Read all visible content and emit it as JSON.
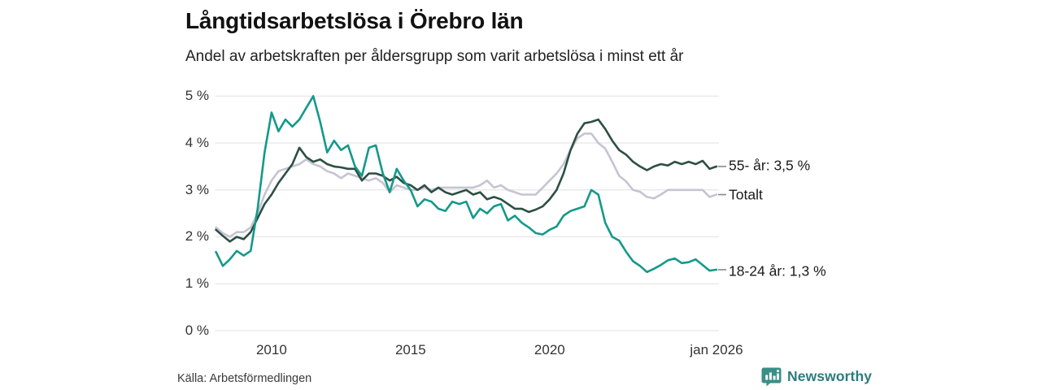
{
  "header": {
    "title": "Långtidsarbetslösa i Örebro län",
    "subtitle": "Andel av arbetskraften per åldersgrupp som varit arbetslösa i minst ett år"
  },
  "footer": {
    "source": "Källa: Arbetsförmedlingen",
    "brand": "Newsworthy"
  },
  "colors": {
    "series_older": "#2d4f43",
    "series_total": "#c6c4d2",
    "series_young": "#14998a",
    "gridline": "#e6e6ea",
    "connector": "#888888",
    "brand_teal": "#3a8f88"
  },
  "chart_data": {
    "type": "line",
    "title": "Långtidsarbetslösa i Örebro län",
    "subtitle": "Andel av arbetskraften per åldersgrupp som varit arbetslösa i minst ett år",
    "xlabel": "",
    "ylabel": "",
    "grid": "horizontal",
    "legend_position": "right-end-labels",
    "ylim": [
      0,
      5
    ],
    "xlim": [
      2008.0,
      2026.0
    ],
    "y_tick_labels": [
      "0 %",
      "1 %",
      "2 %",
      "3 %",
      "4 %",
      "5 %"
    ],
    "y_tick_values": [
      0,
      1,
      2,
      3,
      4,
      5
    ],
    "x_tick_labels": [
      "2010",
      "2015",
      "2020",
      "jan 2026"
    ],
    "x_tick_years": [
      2010,
      2015,
      2020,
      2026
    ],
    "x_start": 2008.0,
    "x_step": 0.25,
    "unit": "%",
    "series": [
      {
        "name": "Totalt",
        "end_label": "Totalt",
        "end_value": 2.9,
        "color": "#c6c4d2",
        "values": [
          2.2,
          2.08,
          2.0,
          2.1,
          2.1,
          2.2,
          2.5,
          2.9,
          3.2,
          3.4,
          3.45,
          3.5,
          3.55,
          3.65,
          3.55,
          3.5,
          3.4,
          3.35,
          3.25,
          3.35,
          3.3,
          3.25,
          3.2,
          3.25,
          3.15,
          2.95,
          3.1,
          3.05,
          3.0,
          3.0,
          3.05,
          3.0,
          3.05,
          3.05,
          3.05,
          3.05,
          3.05,
          3.05,
          3.1,
          3.2,
          3.05,
          3.1,
          3.0,
          2.95,
          2.9,
          2.9,
          2.9,
          3.05,
          3.2,
          3.35,
          3.55,
          3.85,
          4.1,
          4.2,
          4.2,
          4.0,
          3.88,
          3.6,
          3.3,
          3.18,
          3.0,
          2.96,
          2.85,
          2.82,
          2.9,
          3.0,
          3.0,
          3.0,
          3.0,
          3.0,
          3.0,
          2.85,
          2.9
        ]
      },
      {
        "name": "55- år",
        "end_label": "55- år: 3,5 %",
        "end_value": 3.5,
        "color": "#2d4f43",
        "values": [
          2.15,
          2.02,
          1.9,
          2.0,
          1.95,
          2.1,
          2.4,
          2.7,
          2.9,
          3.15,
          3.35,
          3.55,
          3.9,
          3.7,
          3.6,
          3.65,
          3.55,
          3.5,
          3.48,
          3.45,
          3.45,
          3.2,
          3.35,
          3.35,
          3.3,
          3.2,
          3.28,
          3.15,
          3.1,
          3.0,
          3.1,
          2.95,
          3.05,
          2.95,
          2.9,
          2.95,
          3.0,
          2.9,
          2.95,
          2.8,
          2.85,
          2.8,
          2.7,
          2.6,
          2.6,
          2.53,
          2.58,
          2.65,
          2.8,
          3.0,
          3.35,
          3.85,
          4.2,
          4.42,
          4.45,
          4.5,
          4.3,
          4.05,
          3.85,
          3.75,
          3.6,
          3.5,
          3.42,
          3.5,
          3.55,
          3.52,
          3.6,
          3.55,
          3.6,
          3.55,
          3.62,
          3.45,
          3.5
        ]
      },
      {
        "name": "18-24 år",
        "end_label": "18-24 år: 1,3 %",
        "end_value": 1.3,
        "color": "#14998a",
        "values": [
          1.68,
          1.38,
          1.52,
          1.7,
          1.6,
          1.7,
          2.6,
          3.8,
          4.65,
          4.25,
          4.5,
          4.35,
          4.5,
          4.75,
          5.0,
          4.45,
          3.8,
          4.05,
          3.85,
          3.95,
          3.5,
          3.3,
          3.9,
          3.95,
          3.35,
          2.95,
          3.45,
          3.2,
          3.0,
          2.65,
          2.8,
          2.75,
          2.6,
          2.55,
          2.75,
          2.7,
          2.75,
          2.4,
          2.6,
          2.5,
          2.65,
          2.7,
          2.35,
          2.45,
          2.3,
          2.2,
          2.08,
          2.05,
          2.15,
          2.22,
          2.45,
          2.55,
          2.6,
          2.65,
          3.0,
          2.9,
          2.3,
          2.0,
          1.92,
          1.68,
          1.48,
          1.38,
          1.25,
          1.32,
          1.4,
          1.5,
          1.54,
          1.44,
          1.46,
          1.52,
          1.4,
          1.28,
          1.3
        ]
      }
    ]
  }
}
